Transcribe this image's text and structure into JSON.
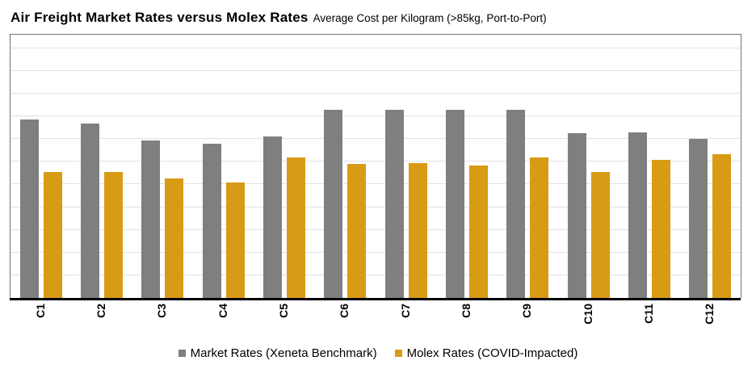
{
  "title": "Air Freight Market Rates versus Molex Rates",
  "subtitle": "Average Cost per Kilogram (>85kg, Port-to-Port)",
  "colors": {
    "market": "#7F7F7F",
    "molex": "#D89B15",
    "gridline": "#E2E2E2",
    "plot_border": "#737373",
    "axis": "#000000"
  },
  "legend": {
    "position": "bottom-center",
    "items": [
      {
        "label": "Market Rates (Xeneta Benchmark)",
        "color": "#7F7F7F"
      },
      {
        "label": "Molex Rates (COVID-Impacted)",
        "color": "#D89B15"
      }
    ]
  },
  "chart_data": {
    "type": "bar",
    "title": "Air Freight Market Rates versus Molex Rates",
    "subtitle": "Average Cost per Kilogram (>85kg, Port-to-Port)",
    "categories": [
      "C1",
      "C2",
      "C3",
      "C4",
      "C5",
      "C6",
      "C7",
      "C8",
      "C9",
      "C10",
      "C11",
      "C12"
    ],
    "series": [
      {
        "name": "Market Rates (Xeneta Benchmark)",
        "color": "#7F7F7F",
        "values": [
          7.85,
          7.7,
          6.95,
          6.8,
          7.1,
          8.3,
          8.3,
          8.3,
          8.3,
          7.25,
          7.3,
          7.0
        ]
      },
      {
        "name": "Molex Rates (COVID-Impacted)",
        "color": "#D89B15",
        "values": [
          5.55,
          5.55,
          5.25,
          5.1,
          6.2,
          5.9,
          5.95,
          5.85,
          6.2,
          5.55,
          6.1,
          6.35
        ]
      }
    ],
    "xlabel": "",
    "ylabel": "",
    "ylim": [
      0,
      11.6
    ],
    "gridline_interval": 1,
    "y_tick_labels_visible": false,
    "grid": true,
    "x_label_rotation_deg": 90
  }
}
